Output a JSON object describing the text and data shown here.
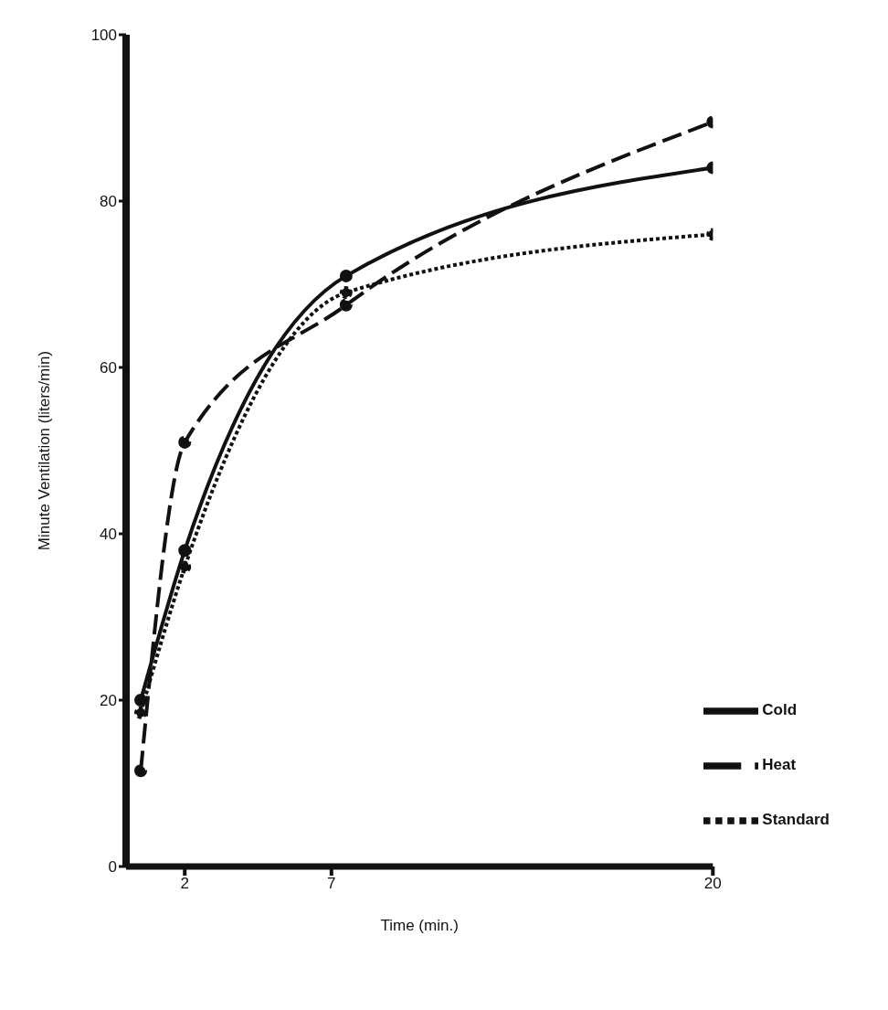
{
  "chart_data": {
    "type": "line",
    "xlabel": "Time (min.)",
    "ylabel": "Minute Ventilation (liters/min)",
    "x": [
      0.5,
      2,
      7.5,
      20
    ],
    "xlim": [
      0,
      20
    ],
    "xticks": [
      2,
      7,
      20
    ],
    "ylim": [
      0,
      100
    ],
    "yticks": [
      0,
      20,
      40,
      60,
      80,
      100
    ],
    "grid": false,
    "legend": "bottom right",
    "marker": "circle",
    "series": [
      {
        "name": "Cold",
        "color": "#111111",
        "line_style": "solid",
        "values": [
          20,
          38,
          71,
          84
        ]
      },
      {
        "name": "Heat",
        "color": "#111111",
        "line_style": "dashed",
        "values": [
          11.5,
          51,
          67.5,
          89.5
        ]
      },
      {
        "name": "Standard",
        "color": "#111111",
        "line_style": "dotted",
        "values": [
          18.5,
          36,
          69,
          76
        ]
      }
    ]
  }
}
